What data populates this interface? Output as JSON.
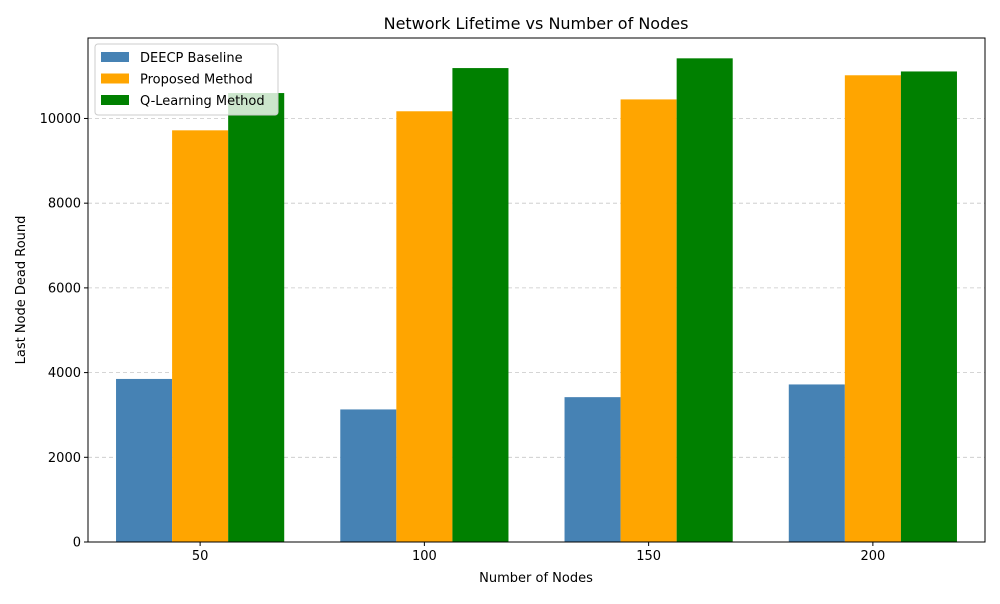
{
  "chart_data": {
    "type": "bar",
    "title": "Network Lifetime vs Number of Nodes",
    "xlabel": "Number of Nodes",
    "ylabel": "Last Node Dead Round",
    "categories": [
      "50",
      "100",
      "150",
      "200"
    ],
    "ylim": [
      0,
      11900
    ],
    "yticks": [
      0,
      2000,
      4000,
      6000,
      8000,
      10000
    ],
    "grid": "y-dashed",
    "legend_position": "top-left",
    "series": [
      {
        "name": "DEECP Baseline",
        "color": "#4682b4",
        "values": [
          3850,
          3130,
          3420,
          3720
        ]
      },
      {
        "name": "Proposed Method",
        "color": "#ffa500",
        "values": [
          9720,
          10170,
          10450,
          11020
        ]
      },
      {
        "name": "Q-Learning Method",
        "color": "#008000",
        "values": [
          10600,
          11190,
          11420,
          11110
        ]
      }
    ]
  }
}
